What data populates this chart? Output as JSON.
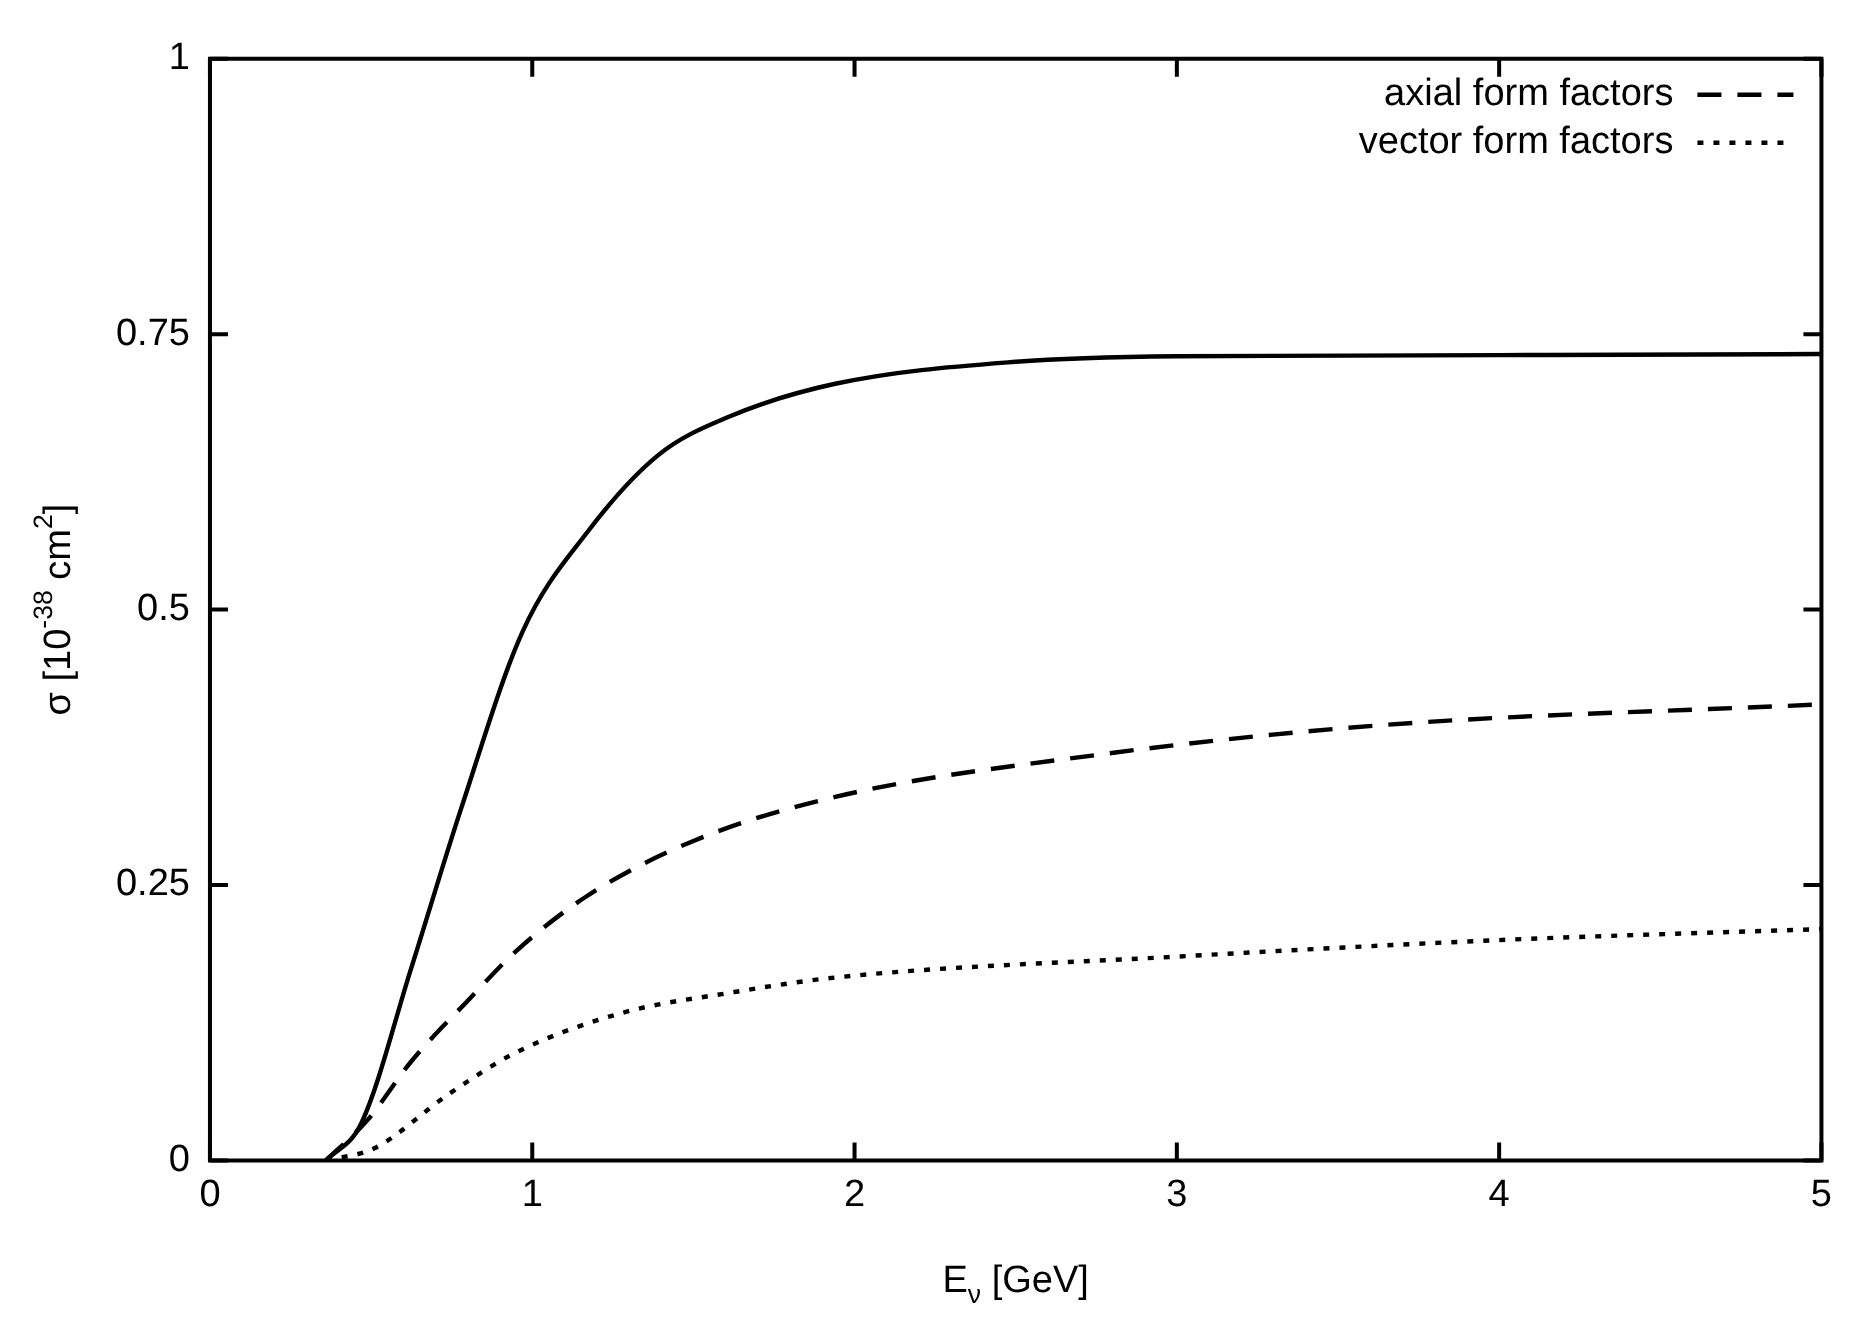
{
  "chart_data": {
    "type": "line",
    "xlabel": "E$_{ν}$ [GeV]",
    "ylabel": "σ [10$^{-38}$ cm$^{2}$]",
    "xlim": [
      0,
      5
    ],
    "xticks": [
      0,
      1,
      2,
      3,
      4,
      5
    ],
    "ylim": [
      0,
      1
    ],
    "yticks": [
      0,
      0.25,
      0.5,
      0.75,
      1
    ],
    "legend": "top right",
    "marker": "none",
    "grid": false,
    "series": [
      {
        "color": "#000000",
        "line_style": "solid",
        "x": [
          0.36,
          0.47,
          0.625,
          0.78,
          0.97,
          1.17,
          1.39,
          1.61,
          1.94,
          2.5,
          3,
          4,
          5
        ],
        "values": [
          0,
          0.034,
          0.175,
          0.32,
          0.48,
          0.57,
          0.64,
          0.675,
          0.705,
          0.725,
          0.73,
          0.731,
          0.732
        ]
      },
      {
        "name": "axial form factors",
        "color": "#000000",
        "line_style": "dashed",
        "x": [
          0.36,
          0.49,
          0.625,
          0.8,
          0.95,
          1.17,
          1.5,
          1.94,
          2.75,
          3.63,
          5
        ],
        "values": [
          0,
          0.037,
          0.09,
          0.145,
          0.19,
          0.24,
          0.29,
          0.33,
          0.368,
          0.395,
          0.414
        ]
      },
      {
        "name": "vector form factors",
        "color": "#000000",
        "line_style": "dotted",
        "x": [
          0.36,
          0.51,
          0.74,
          0.95,
          1.28,
          1.61,
          1.94,
          3,
          4,
          5
        ],
        "values": [
          0,
          0.011,
          0.06,
          0.098,
          0.134,
          0.152,
          0.166,
          0.185,
          0.2,
          0.21
        ]
      }
    ]
  }
}
